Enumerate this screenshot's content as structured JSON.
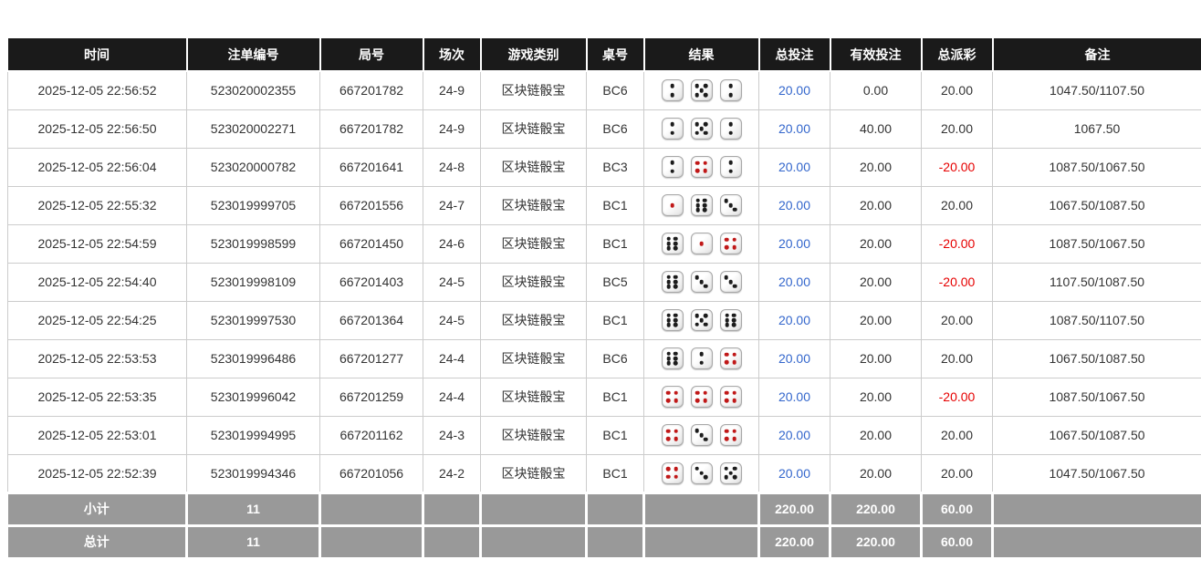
{
  "colors": {
    "header_bg": "#1a1a1a",
    "header_text": "#ffffff",
    "link_blue": "#3366cc",
    "negative_red": "#e60000",
    "footer_bg": "#999999",
    "row_border": "#cccccc",
    "dice_dot_black": "#1c1c1c",
    "dice_dot_red": "#c01818"
  },
  "table": {
    "headers": [
      "时间",
      "注单编号",
      "局号",
      "场次",
      "游戏类别",
      "桌号",
      "结果",
      "总投注",
      "有效投注",
      "总派彩",
      "备注"
    ],
    "rows": [
      {
        "time": "2025-12-05 22:56:52",
        "bet_id": "523020002355",
        "round": "667201782",
        "session": "24-9",
        "game": "区块链骰宝",
        "table_no": "BC6",
        "dice": [
          2,
          5,
          2
        ],
        "total_bet": "20.00",
        "valid_bet": "0.00",
        "payout": "20.00",
        "remark": "1047.50/1107.50"
      },
      {
        "time": "2025-12-05 22:56:50",
        "bet_id": "523020002271",
        "round": "667201782",
        "session": "24-9",
        "game": "区块链骰宝",
        "table_no": "BC6",
        "dice": [
          2,
          5,
          2
        ],
        "total_bet": "20.00",
        "valid_bet": "40.00",
        "payout": "20.00",
        "remark": "1067.50"
      },
      {
        "time": "2025-12-05 22:56:04",
        "bet_id": "523020000782",
        "round": "667201641",
        "session": "24-8",
        "game": "区块链骰宝",
        "table_no": "BC3",
        "dice": [
          2,
          4,
          2
        ],
        "total_bet": "20.00",
        "valid_bet": "20.00",
        "payout": "-20.00",
        "remark": "1087.50/1067.50"
      },
      {
        "time": "2025-12-05 22:55:32",
        "bet_id": "523019999705",
        "round": "667201556",
        "session": "24-7",
        "game": "区块链骰宝",
        "table_no": "BC1",
        "dice": [
          1,
          6,
          3
        ],
        "total_bet": "20.00",
        "valid_bet": "20.00",
        "payout": "20.00",
        "remark": "1067.50/1087.50"
      },
      {
        "time": "2025-12-05 22:54:59",
        "bet_id": "523019998599",
        "round": "667201450",
        "session": "24-6",
        "game": "区块链骰宝",
        "table_no": "BC1",
        "dice": [
          6,
          1,
          4
        ],
        "total_bet": "20.00",
        "valid_bet": "20.00",
        "payout": "-20.00",
        "remark": "1087.50/1067.50"
      },
      {
        "time": "2025-12-05 22:54:40",
        "bet_id": "523019998109",
        "round": "667201403",
        "session": "24-5",
        "game": "区块链骰宝",
        "table_no": "BC5",
        "dice": [
          6,
          3,
          3
        ],
        "total_bet": "20.00",
        "valid_bet": "20.00",
        "payout": "-20.00",
        "remark": "1107.50/1087.50"
      },
      {
        "time": "2025-12-05 22:54:25",
        "bet_id": "523019997530",
        "round": "667201364",
        "session": "24-5",
        "game": "区块链骰宝",
        "table_no": "BC1",
        "dice": [
          6,
          5,
          6
        ],
        "total_bet": "20.00",
        "valid_bet": "20.00",
        "payout": "20.00",
        "remark": "1087.50/1107.50"
      },
      {
        "time": "2025-12-05 22:53:53",
        "bet_id": "523019996486",
        "round": "667201277",
        "session": "24-4",
        "game": "区块链骰宝",
        "table_no": "BC6",
        "dice": [
          6,
          2,
          4
        ],
        "total_bet": "20.00",
        "valid_bet": "20.00",
        "payout": "20.00",
        "remark": "1067.50/1087.50"
      },
      {
        "time": "2025-12-05 22:53:35",
        "bet_id": "523019996042",
        "round": "667201259",
        "session": "24-4",
        "game": "区块链骰宝",
        "table_no": "BC1",
        "dice": [
          4,
          4,
          4
        ],
        "total_bet": "20.00",
        "valid_bet": "20.00",
        "payout": "-20.00",
        "remark": "1087.50/1067.50"
      },
      {
        "time": "2025-12-05 22:53:01",
        "bet_id": "523019994995",
        "round": "667201162",
        "session": "24-3",
        "game": "区块链骰宝",
        "table_no": "BC1",
        "dice": [
          4,
          3,
          4
        ],
        "total_bet": "20.00",
        "valid_bet": "20.00",
        "payout": "20.00",
        "remark": "1067.50/1087.50"
      },
      {
        "time": "2025-12-05 22:52:39",
        "bet_id": "523019994346",
        "round": "667201056",
        "session": "24-2",
        "game": "区块链骰宝",
        "table_no": "BC1",
        "dice": [
          4,
          3,
          5
        ],
        "total_bet": "20.00",
        "valid_bet": "20.00",
        "payout": "20.00",
        "remark": "1047.50/1067.50"
      }
    ],
    "subtotal": {
      "label": "小计",
      "count": "11",
      "total_bet": "220.00",
      "valid_bet": "220.00",
      "payout": "60.00"
    },
    "total": {
      "label": "总计",
      "count": "11",
      "total_bet": "220.00",
      "valid_bet": "220.00",
      "payout": "60.00"
    }
  }
}
